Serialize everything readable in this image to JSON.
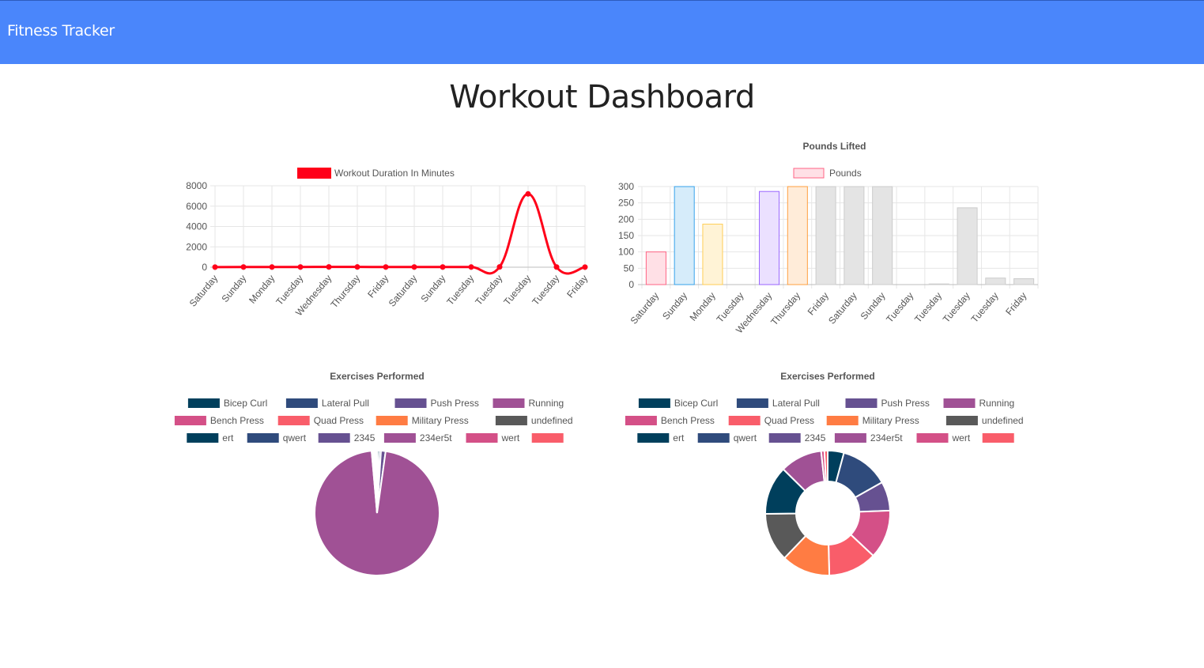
{
  "navbar": {
    "brand": "Fitness Tracker"
  },
  "page": {
    "title": "Workout Dashboard"
  },
  "chart_data": [
    {
      "type": "line",
      "title": "",
      "legend": [
        "Workout Duration In Minutes"
      ],
      "legend_position": "top",
      "categories": [
        "Saturday",
        "Sunday",
        "Monday",
        "Tuesday",
        "Wednesday",
        "Thursday",
        "Friday",
        "Saturday",
        "Sunday",
        "Tuesday",
        "Tuesday",
        "Tuesday",
        "Tuesday",
        "Friday"
      ],
      "series": [
        {
          "name": "Workout Duration In Minutes",
          "values": [
            10,
            20,
            15,
            20,
            30,
            25,
            20,
            20,
            20,
            15,
            30,
            7200,
            20,
            10
          ]
        }
      ],
      "ylim": [
        0,
        8000
      ],
      "yticks": [
        0,
        2000,
        4000,
        6000,
        8000
      ],
      "grid": true,
      "color": "#ff0019"
    },
    {
      "type": "bar",
      "title": "Pounds Lifted",
      "legend": [
        "Pounds"
      ],
      "legend_position": "top",
      "categories": [
        "Saturday",
        "Sunday",
        "Monday",
        "Tuesday",
        "Wednesday",
        "Thursday",
        "Friday",
        "Saturday",
        "Sunday",
        "Tuesday",
        "Tuesday",
        "Tuesday",
        "Tuesday",
        "Friday"
      ],
      "values": [
        100,
        300,
        185,
        0,
        285,
        300,
        300,
        300,
        300,
        0,
        2,
        235,
        20,
        18
      ],
      "ylim": [
        0,
        300
      ],
      "yticks": [
        0,
        50,
        100,
        150,
        200,
        250,
        300
      ],
      "grid": true,
      "fills": [
        "#ffe0e6",
        "#d6ecfa",
        "#fff3d6",
        "#e9e9e9",
        "#ebe0ff",
        "#ffecd9",
        "#e4e4e4",
        "#e4e4e4",
        "#e4e4e4",
        "#e4e4e4",
        "#e4e4e4",
        "#e4e4e4",
        "#e4e4e4",
        "#e4e4e4"
      ],
      "strokes": [
        "#ff6384",
        "#36a2eb",
        "#ffce56",
        "#c9cbcf",
        "#9966ff",
        "#ff9f40",
        "#cccccc",
        "#cccccc",
        "#cccccc",
        "#cccccc",
        "#cccccc",
        "#cccccc",
        "#cccccc",
        "#cccccc"
      ]
    },
    {
      "type": "pie",
      "title": "Exercises Performed",
      "legend_position": "top",
      "labels": [
        "Bicep Curl",
        "Lateral Pull",
        "Push Press",
        "Running",
        "Bench Press",
        "Quad Press",
        "Military Press",
        "undefined",
        "ert",
        "qwert",
        "2345",
        "234er5t",
        "wert",
        ""
      ],
      "values": [
        0.5,
        0.5,
        1.2,
        96.6,
        0.2,
        0.2,
        0.2,
        0.2,
        0.1,
        0.1,
        0.1,
        0.1,
        0.1,
        0.1
      ],
      "colors": [
        "#003f5c",
        "#2f4b7c",
        "#665191",
        "#a05195",
        "#d45087",
        "#f95d6a",
        "#ff7c43",
        "#595959",
        "#003f5c",
        "#2f4b7c",
        "#665191",
        "#a05195",
        "#d45087",
        "#f95d6a"
      ]
    },
    {
      "type": "doughnut",
      "title": "Exercises Performed",
      "legend_position": "top",
      "labels": [
        "Bicep Curl",
        "Lateral Pull",
        "Push Press",
        "Running",
        "Bench Press",
        "Quad Press",
        "Military Press",
        "undefined",
        "ert",
        "qwert",
        "2345",
        "234er5t",
        "wert",
        ""
      ],
      "values": [
        5,
        15,
        9,
        0,
        15,
        15,
        15,
        15,
        15,
        0,
        0,
        13,
        1,
        1
      ],
      "colors": [
        "#003f5c",
        "#2f4b7c",
        "#665191",
        "#a05195",
        "#d45087",
        "#f95d6a",
        "#ff7c43",
        "#595959",
        "#003f5c",
        "#2f4b7c",
        "#665191",
        "#a05195",
        "#d45087",
        "#f95d6a"
      ]
    }
  ]
}
